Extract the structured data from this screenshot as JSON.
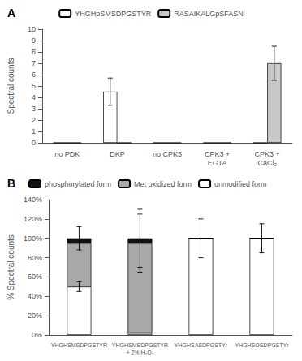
{
  "chart_data": [
    {
      "type": "bar",
      "title": "A",
      "categories": [
        "no PDK",
        "DKP",
        "no CPK3",
        "CPK3 +\nEGTA",
        "CPK3 +\nCaCl₂"
      ],
      "series": [
        {
          "name": "YHGHpSMSDPGSTYR",
          "color": "white",
          "values": [
            0,
            4.5,
            0,
            0,
            0
          ],
          "errors": [
            0,
            1.2,
            0,
            0,
            0
          ]
        },
        {
          "name": "RASAIKALGpSFASN",
          "color": "#c8c8c8",
          "values": [
            0,
            0,
            0,
            0,
            7.0
          ],
          "errors": [
            0,
            0,
            0,
            0,
            1.5
          ]
        }
      ],
      "ylabel": "Spectral counts",
      "ylim": [
        0,
        10
      ],
      "yticks": [
        0,
        1,
        2,
        3,
        4,
        5,
        6,
        7,
        8,
        9,
        10
      ],
      "grid": false,
      "legend": "upper center"
    },
    {
      "type": "bar",
      "title": "B",
      "stacked": true,
      "categories": [
        "YHGHSMSDPGSTYR",
        "YHGHSMSDPGSTYR\n+ 2% H₂O₂",
        "YHGHSASDPGSTYr",
        "YHGHSOSDPGSTYr"
      ],
      "series": [
        {
          "name": "unmodified form",
          "color": "white",
          "values": [
            50,
            2,
            100,
            100
          ],
          "errors": [
            5,
            null,
            null,
            null
          ]
        },
        {
          "name": "Met oxidized form",
          "color": "#a8a8a8",
          "values": [
            45,
            93,
            0,
            0
          ],
          "errors": [
            null,
            30,
            null,
            null
          ]
        },
        {
          "name": "phosphorylated form",
          "color": "#111111",
          "values": [
            5,
            5,
            0,
            0
          ],
          "errors": [
            12,
            30,
            20,
            15
          ]
        }
      ],
      "ylabel": "% Spectral counts",
      "ylim": [
        0,
        140
      ],
      "yticks": [
        {
          "value": 0,
          "label": "0%"
        },
        {
          "value": 20,
          "label": "20%"
        },
        {
          "value": 40,
          "label": "40%"
        },
        {
          "value": 60,
          "label": "60%"
        },
        {
          "value": 80,
          "label": "80%"
        },
        {
          "value": 100,
          "label": "100%"
        },
        {
          "value": 120,
          "label": "120%"
        },
        {
          "value": 140,
          "label": "140%"
        }
      ],
      "grid": false,
      "legend": "upper left"
    }
  ]
}
